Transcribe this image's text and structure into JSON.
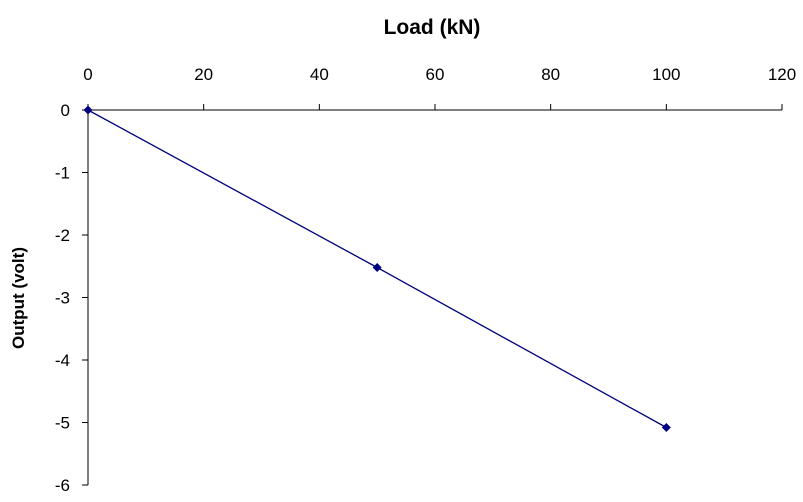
{
  "chart_data": {
    "type": "line",
    "title": "Load (kN)",
    "xlabel": "",
    "ylabel": "Output (volt)",
    "x_axis_position": "top",
    "xlim": [
      0,
      120
    ],
    "ylim": [
      -6,
      0
    ],
    "x_ticks": [
      0,
      20,
      40,
      60,
      80,
      100,
      120
    ],
    "y_ticks": [
      0,
      -1,
      -2,
      -3,
      -4,
      -5,
      -6
    ],
    "x_tick_labels": [
      "0",
      "20",
      "40",
      "60",
      "80",
      "100",
      "120"
    ],
    "y_tick_labels": [
      "0",
      "-1",
      "-2",
      "-3",
      "-4",
      "-5",
      "-6"
    ],
    "grid": false,
    "legend": "none",
    "series": [
      {
        "color": "#00007f",
        "marker": "diamond",
        "x": [
          0,
          50,
          100
        ],
        "y": [
          0,
          -2.52,
          -5.08
        ]
      }
    ]
  }
}
